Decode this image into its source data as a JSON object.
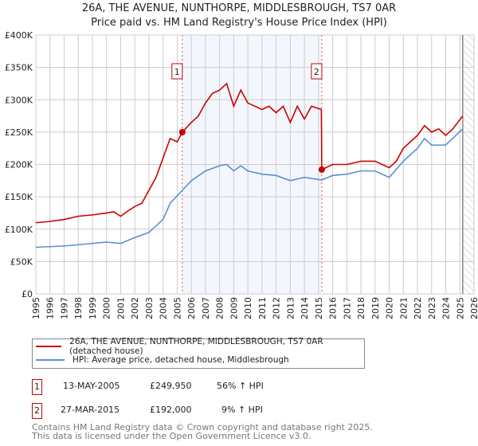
{
  "chart_data": {
    "type": "line",
    "title": "26A, THE AVENUE, NUNTHORPE, MIDDLESBROUGH, TS7 0AR",
    "subtitle": "Price paid vs. HM Land Registry's House Price Index (HPI)",
    "xlim": [
      1995,
      2026
    ],
    "ylim": [
      0,
      400000
    ],
    "x_ticks": [
      "1995",
      "1996",
      "1997",
      "1998",
      "1999",
      "2000",
      "2001",
      "2002",
      "2003",
      "2004",
      "2005",
      "2006",
      "2007",
      "2008",
      "2009",
      "2010",
      "2011",
      "2012",
      "2013",
      "2014",
      "2015",
      "2016",
      "2017",
      "2018",
      "2019",
      "2020",
      "2021",
      "2022",
      "2023",
      "2024",
      "2025",
      "2026"
    ],
    "y_ticks": [
      {
        "v": 0,
        "label": "£0"
      },
      {
        "v": 50000,
        "label": "£50K"
      },
      {
        "v": 100000,
        "label": "£100K"
      },
      {
        "v": 150000,
        "label": "£150K"
      },
      {
        "v": 200000,
        "label": "£200K"
      },
      {
        "v": 250000,
        "label": "£250K"
      },
      {
        "v": 300000,
        "label": "£300K"
      },
      {
        "v": 350000,
        "label": "£350K"
      },
      {
        "v": 400000,
        "label": "£400K"
      }
    ],
    "grid": true,
    "shaded_range": [
      2005.36,
      2015.23
    ],
    "hatched_from": 2025.2,
    "series": [
      {
        "name": "26A, THE AVENUE, NUNTHORPE, MIDDLESBROUGH, TS7 0AR (detached house)",
        "color": "#cc0000",
        "x": [
          1995,
          1996,
          1997,
          1998,
          1999,
          2000,
          2000.5,
          2001,
          2001.5,
          2002,
          2002.5,
          2003,
          2003.5,
          2004,
          2004.5,
          2005,
          2005.36,
          2006,
          2006.5,
          2007,
          2007.5,
          2008,
          2008.5,
          2009,
          2009.5,
          2010,
          2011,
          2011.5,
          2012,
          2012.5,
          2013,
          2013.5,
          2014,
          2014.5,
          2015.2,
          2015.23,
          2016,
          2017,
          2018,
          2019,
          2020,
          2020.5,
          2021,
          2022,
          2022.5,
          2023,
          2023.5,
          2024,
          2024.5,
          2025.2
        ],
        "y": [
          110000,
          112000,
          115000,
          120000,
          122000,
          125000,
          127000,
          120000,
          128000,
          135000,
          140000,
          160000,
          180000,
          210000,
          240000,
          235000,
          249950,
          265000,
          275000,
          295000,
          310000,
          315000,
          325000,
          290000,
          315000,
          295000,
          285000,
          290000,
          280000,
          290000,
          265000,
          290000,
          270000,
          290000,
          285000,
          192000,
          200000,
          200000,
          205000,
          205000,
          195000,
          205000,
          225000,
          245000,
          260000,
          250000,
          255000,
          245000,
          255000,
          275000
        ]
      },
      {
        "name": "HPI: Average price, detached house, Middlesbrough",
        "color": "#5b8fd4",
        "x": [
          1995,
          1997,
          1998,
          1999,
          2000,
          2001,
          2002,
          2003,
          2004,
          2004.5,
          2005.36,
          2006,
          2007,
          2008,
          2008.5,
          2009,
          2009.5,
          2010,
          2011,
          2012,
          2013,
          2014,
          2015.23,
          2016,
          2017,
          2018,
          2019,
          2020,
          2021,
          2022,
          2022.5,
          2023,
          2024,
          2025.2
        ],
        "y": [
          72000,
          74000,
          76000,
          78000,
          80000,
          78000,
          87000,
          95000,
          115000,
          140000,
          160000,
          175000,
          190000,
          198000,
          200000,
          190000,
          198000,
          190000,
          185000,
          183000,
          175000,
          180000,
          176000,
          183000,
          185000,
          190000,
          190000,
          180000,
          205000,
          225000,
          240000,
          230000,
          230000,
          255000
        ]
      }
    ],
    "annotations": [
      {
        "label": "1",
        "x": 2005.36,
        "y": 249950
      },
      {
        "label": "2",
        "x": 2015.23,
        "y": 192000
      }
    ]
  },
  "transactions": [
    {
      "num": "1",
      "date": "13-MAY-2005",
      "price": "£249,950",
      "hpi": "56% ↑ HPI"
    },
    {
      "num": "2",
      "date": "27-MAR-2015",
      "price": "£192,000",
      "hpi": "9% ↑ HPI"
    }
  ],
  "footer": {
    "line1": "Contains HM Land Registry data © Crown copyright and database right 2025.",
    "line2": "This data is licensed under the Open Government Licence v3.0."
  }
}
